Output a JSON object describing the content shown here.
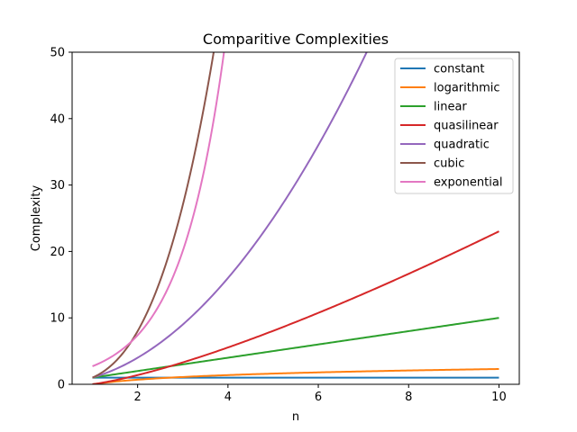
{
  "chart_data": {
    "type": "line",
    "title": "Comparitive Complexities",
    "xlabel": "n",
    "ylabel": "Complexity",
    "xlim": [
      0.55,
      10.45
    ],
    "ylim": [
      0,
      50
    ],
    "xticks": [
      2,
      4,
      6,
      8,
      10
    ],
    "yticks": [
      0,
      10,
      20,
      30,
      40,
      50
    ],
    "grid": false,
    "legend": "top-right",
    "x_range": [
      1,
      10
    ],
    "series": [
      {
        "name": "constant",
        "formula": "1",
        "color": "#1f77b4"
      },
      {
        "name": "logarithmic",
        "formula": "ln(n)",
        "color": "#ff7f0e"
      },
      {
        "name": "linear",
        "formula": "n",
        "color": "#2ca02c"
      },
      {
        "name": "quasilinear",
        "formula": "n*ln(n)",
        "color": "#d62728"
      },
      {
        "name": "quadratic",
        "formula": "n^2",
        "color": "#9467bd"
      },
      {
        "name": "cubic",
        "formula": "n^3",
        "color": "#8c564b"
      },
      {
        "name": "exponential",
        "formula": "e^n",
        "color": "#e377c2"
      }
    ]
  }
}
